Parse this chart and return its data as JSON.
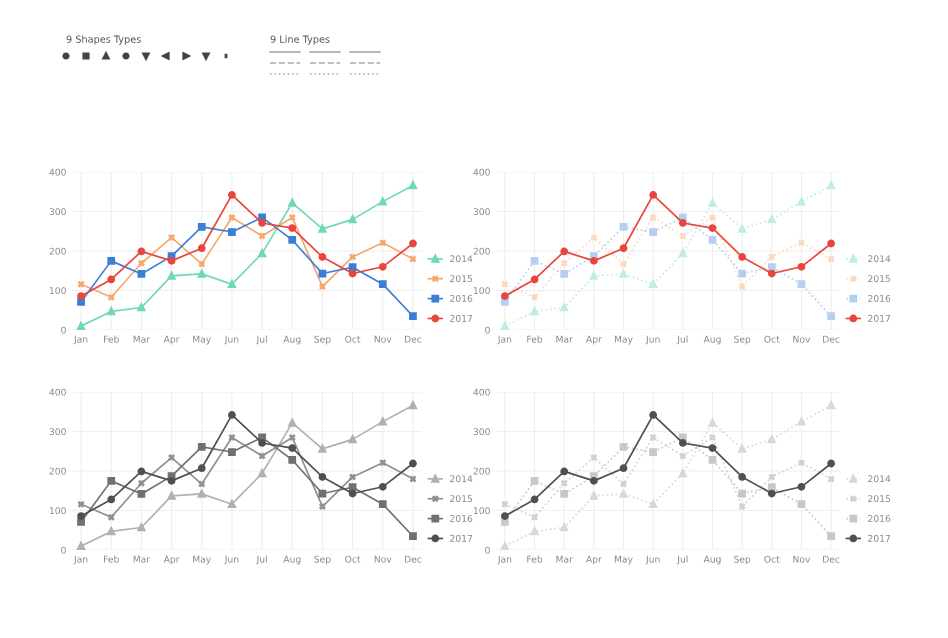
{
  "chart_data": [
    {
      "type": "other",
      "annotations": [
        "9 Shapes Types",
        "9 Line Types"
      ]
    },
    {
      "type": "line",
      "categories": [
        "Jan",
        "Feb",
        "Mar",
        "Apr",
        "May",
        "Jun",
        "Jul",
        "Aug",
        "Sep",
        "Oct",
        "Nov",
        "Dec"
      ],
      "ylim": [
        0,
        400
      ],
      "yticks": [
        0,
        100,
        200,
        300,
        400
      ],
      "grid": true,
      "legend": "right",
      "series": [
        {
          "name": "2014",
          "color": "#6fd8b8",
          "marker": "triangle",
          "line_style": "solid",
          "values": [
            10,
            47,
            57,
            137,
            142,
            116,
            194,
            322,
            256,
            280,
            325,
            366
          ]
        },
        {
          "name": "2015",
          "color": "#f5a86e",
          "marker": "cross",
          "line_style": "solid",
          "values": [
            116,
            83,
            169,
            234,
            167,
            285,
            238,
            285,
            110,
            185,
            221,
            180
          ]
        },
        {
          "name": "2016",
          "color": "#3a7fd5",
          "marker": "square",
          "line_style": "solid",
          "values": [
            71,
            175,
            142,
            187,
            261,
            248,
            285,
            228,
            143,
            159,
            116,
            35
          ]
        },
        {
          "name": "2017",
          "color": "#e8453c",
          "marker": "circle",
          "line_style": "solid",
          "values": [
            86,
            128,
            199,
            175,
            207,
            342,
            271,
            258,
            185,
            143,
            160,
            219
          ]
        }
      ]
    },
    {
      "type": "line",
      "categories": [
        "Jan",
        "Feb",
        "Mar",
        "Apr",
        "May",
        "Jun",
        "Jul",
        "Aug",
        "Sep",
        "Oct",
        "Nov",
        "Dec"
      ],
      "ylim": [
        0,
        400
      ],
      "yticks": [
        0,
        100,
        200,
        300,
        400
      ],
      "grid": true,
      "legend": "right",
      "series": [
        {
          "name": "2014",
          "color": "#bfeee0",
          "marker": "triangle",
          "line_style": "dotted",
          "values": [
            10,
            47,
            57,
            137,
            142,
            116,
            194,
            322,
            256,
            280,
            325,
            366
          ]
        },
        {
          "name": "2015",
          "color": "#fbd9bf",
          "marker": "cross",
          "line_style": "dotted",
          "values": [
            116,
            83,
            169,
            234,
            167,
            285,
            238,
            285,
            110,
            185,
            221,
            180
          ]
        },
        {
          "name": "2016",
          "color": "#b5cff0",
          "marker": "square",
          "line_style": "dotted",
          "values": [
            71,
            175,
            142,
            187,
            261,
            248,
            285,
            228,
            143,
            159,
            116,
            35
          ]
        },
        {
          "name": "2017",
          "color": "#e8453c",
          "marker": "circle",
          "line_style": "solid",
          "values": [
            86,
            128,
            199,
            175,
            207,
            342,
            271,
            258,
            185,
            143,
            160,
            219
          ]
        }
      ]
    },
    {
      "type": "line",
      "categories": [
        "Jan",
        "Feb",
        "Mar",
        "Apr",
        "May",
        "Jun",
        "Jul",
        "Aug",
        "Sep",
        "Oct",
        "Nov",
        "Dec"
      ],
      "ylim": [
        0,
        400
      ],
      "yticks": [
        0,
        100,
        200,
        300,
        400
      ],
      "grid": true,
      "legend": "right",
      "series": [
        {
          "name": "2014",
          "color": "#b0b0b0",
          "marker": "triangle",
          "line_style": "solid",
          "values": [
            10,
            47,
            57,
            137,
            142,
            116,
            194,
            322,
            256,
            280,
            325,
            366
          ]
        },
        {
          "name": "2015",
          "color": "#909090",
          "marker": "cross",
          "line_style": "solid",
          "values": [
            116,
            83,
            169,
            234,
            167,
            285,
            238,
            285,
            110,
            185,
            221,
            180
          ]
        },
        {
          "name": "2016",
          "color": "#707070",
          "marker": "square",
          "line_style": "solid",
          "values": [
            71,
            175,
            142,
            187,
            261,
            248,
            285,
            228,
            143,
            159,
            116,
            35
          ]
        },
        {
          "name": "2017",
          "color": "#505050",
          "marker": "circle",
          "line_style": "solid",
          "values": [
            86,
            128,
            199,
            175,
            207,
            342,
            271,
            258,
            185,
            143,
            160,
            219
          ]
        }
      ]
    },
    {
      "type": "line",
      "categories": [
        "Jan",
        "Feb",
        "Mar",
        "Apr",
        "May",
        "Jun",
        "Jul",
        "Aug",
        "Sep",
        "Oct",
        "Nov",
        "Dec"
      ],
      "ylim": [
        0,
        400
      ],
      "yticks": [
        0,
        100,
        200,
        300,
        400
      ],
      "grid": true,
      "legend": "right",
      "series": [
        {
          "name": "2014",
          "color": "#d8d8d8",
          "marker": "triangle",
          "line_style": "dotted",
          "values": [
            10,
            47,
            57,
            137,
            142,
            116,
            194,
            322,
            256,
            280,
            325,
            366
          ]
        },
        {
          "name": "2015",
          "color": "#d0d0d0",
          "marker": "cross",
          "line_style": "dotted",
          "values": [
            116,
            83,
            169,
            234,
            167,
            285,
            238,
            285,
            110,
            185,
            221,
            180
          ]
        },
        {
          "name": "2016",
          "color": "#c8c8c8",
          "marker": "square",
          "line_style": "dotted",
          "values": [
            71,
            175,
            142,
            187,
            261,
            248,
            285,
            228,
            143,
            159,
            116,
            35
          ]
        },
        {
          "name": "2017",
          "color": "#505050",
          "marker": "circle",
          "line_style": "solid",
          "values": [
            86,
            128,
            199,
            175,
            207,
            342,
            271,
            258,
            185,
            143,
            160,
            219
          ]
        }
      ]
    }
  ]
}
